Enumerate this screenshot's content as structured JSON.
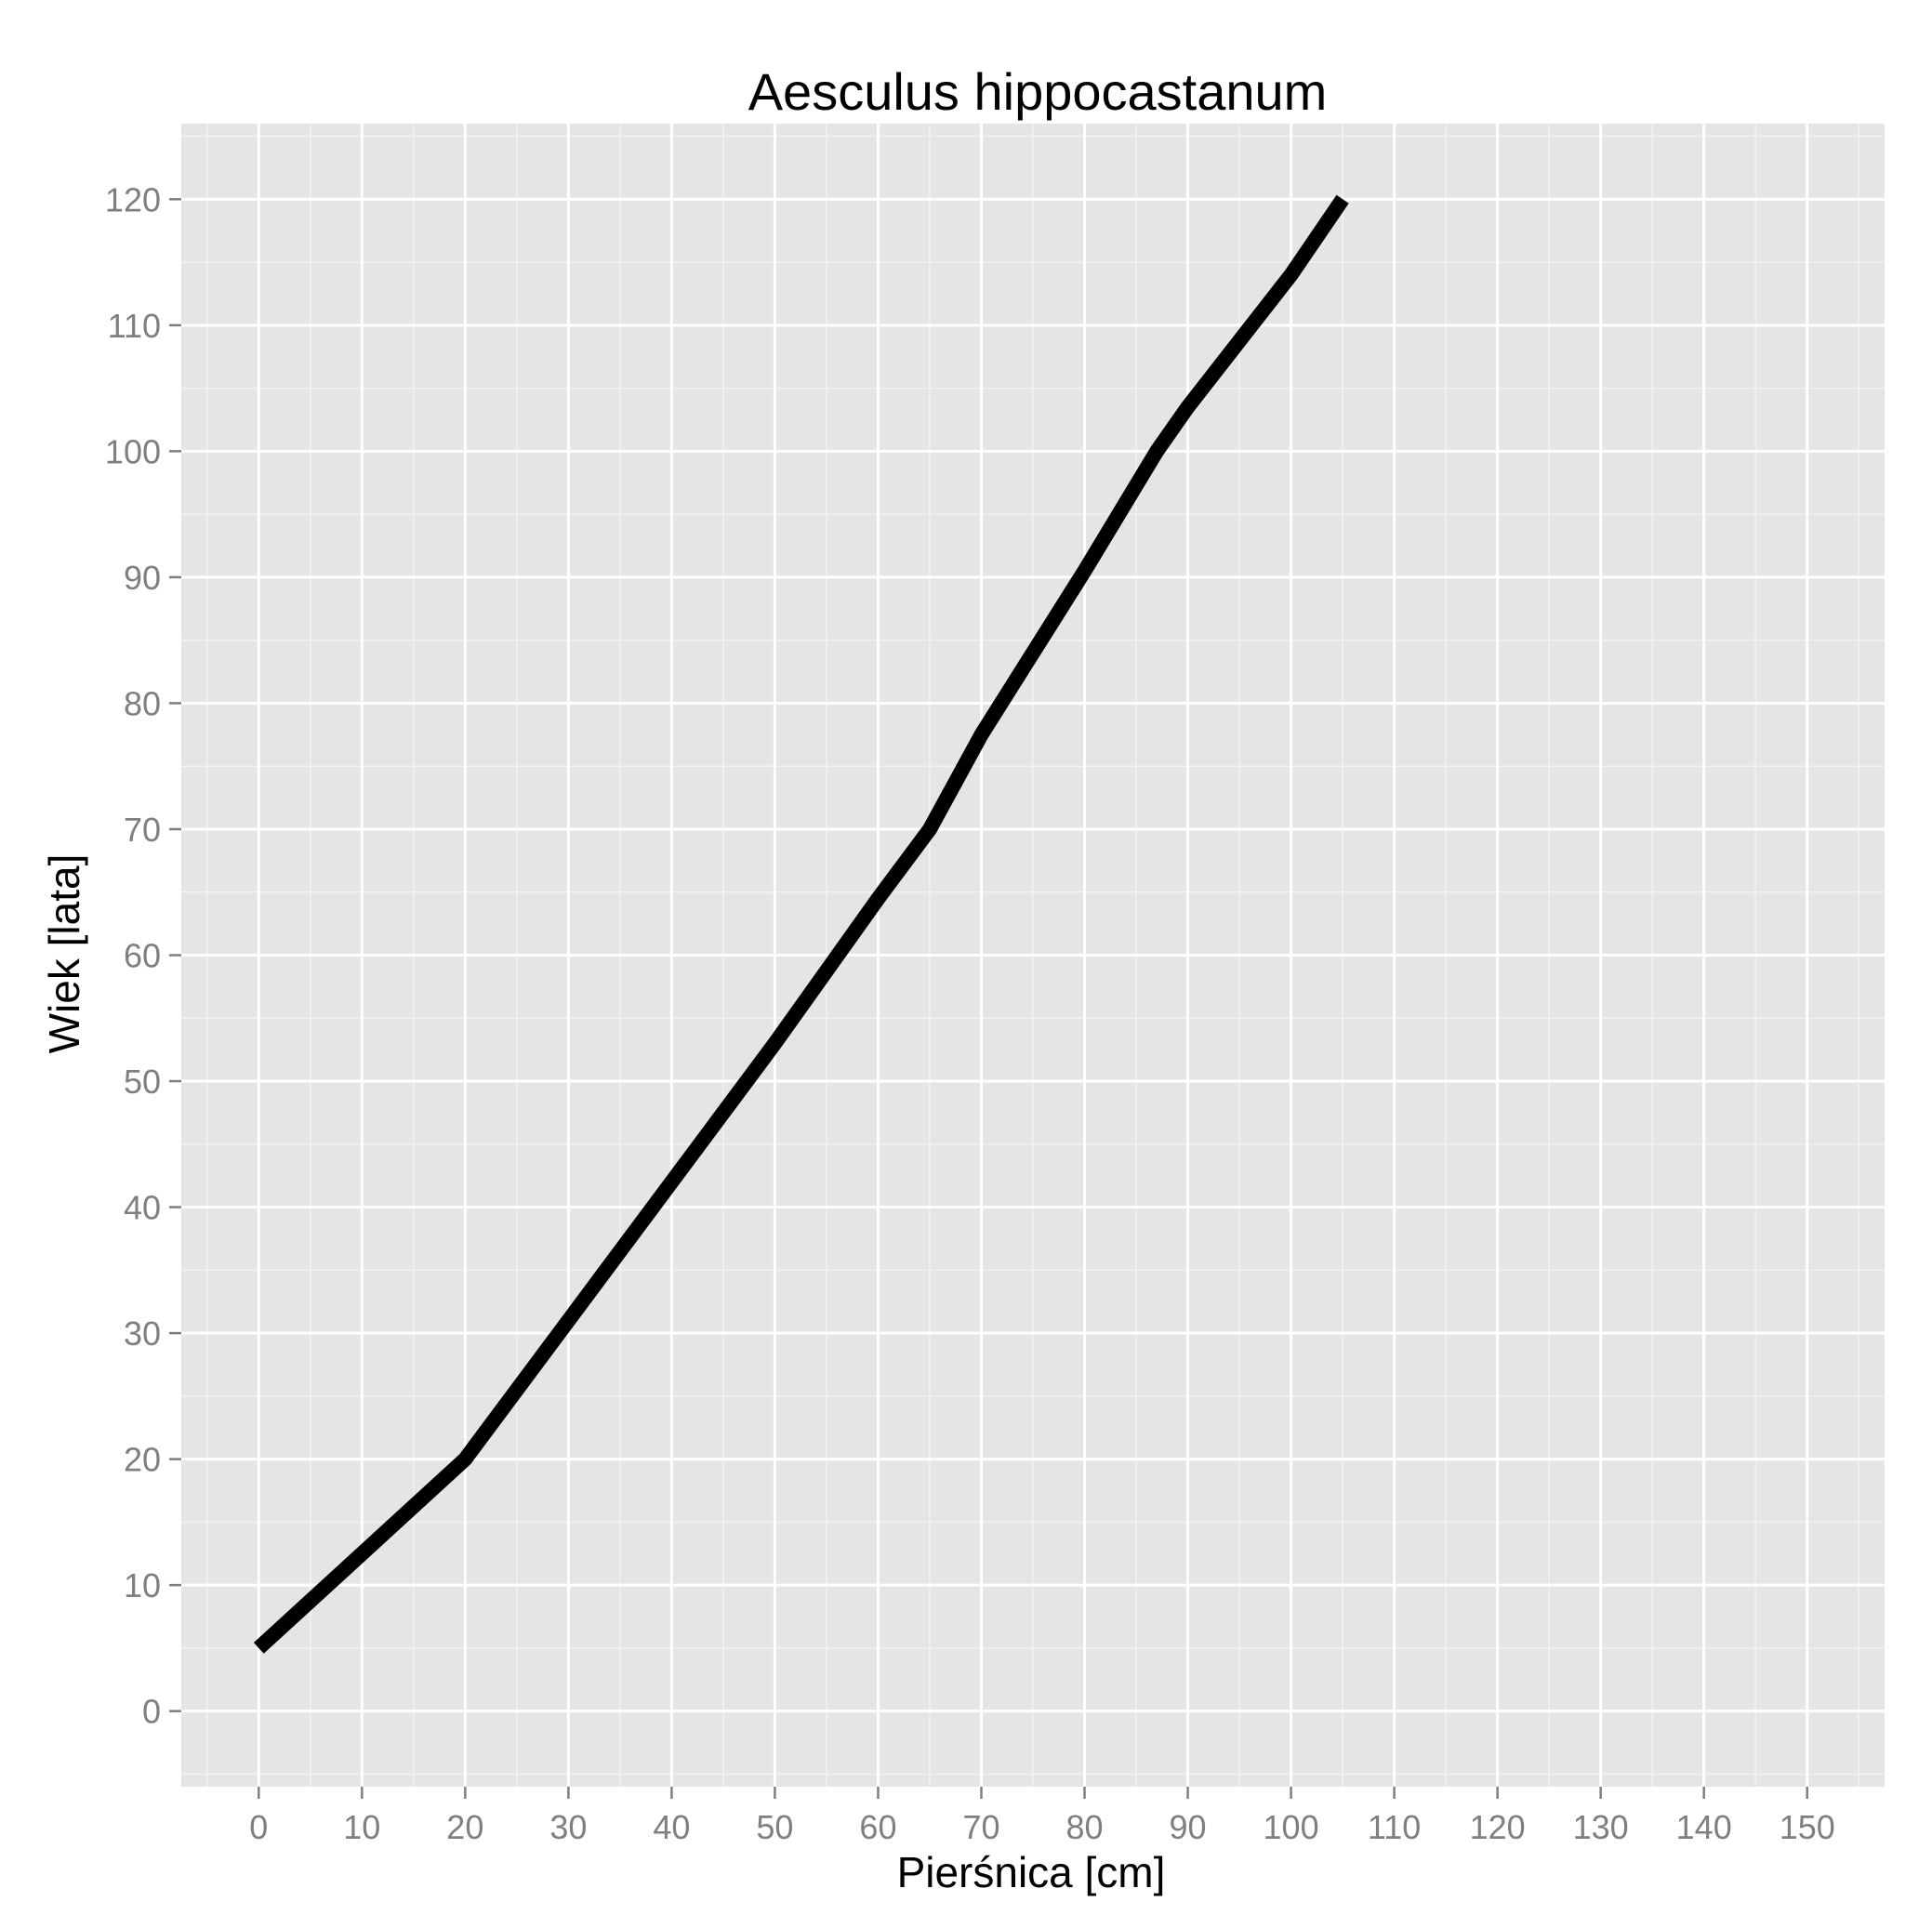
{
  "chart_data": {
    "type": "line",
    "title": "Aesculus hippocastanum",
    "xlabel": "Pierśnica [cm]",
    "ylabel": "Wiek [lata]",
    "xlim": [
      -7.5,
      157.5
    ],
    "ylim": [
      -6,
      126
    ],
    "x_ticks": [
      0,
      10,
      20,
      30,
      40,
      50,
      60,
      70,
      80,
      90,
      100,
      110,
      120,
      130,
      140,
      150
    ],
    "y_ticks": [
      0,
      10,
      20,
      30,
      40,
      50,
      60,
      70,
      80,
      90,
      100,
      110,
      120
    ],
    "grid": true,
    "series": [
      {
        "x": [
          0,
          10,
          20,
          30,
          40,
          50,
          60,
          65,
          70,
          80,
          87,
          90,
          100,
          105
        ],
        "y": [
          5,
          12.5,
          20,
          31,
          42,
          53,
          64.5,
          70,
          77.5,
          90.5,
          100,
          103.5,
          114,
          120
        ],
        "color": "#000000"
      }
    ],
    "colors": {
      "panel_bg": "#e5e5e5",
      "grid_major": "#ffffff",
      "grid_minor": "#f2f2f2",
      "tick_text": "#7f7f7f",
      "tick_mark": "#7f7f7f",
      "line": "#000000"
    }
  }
}
